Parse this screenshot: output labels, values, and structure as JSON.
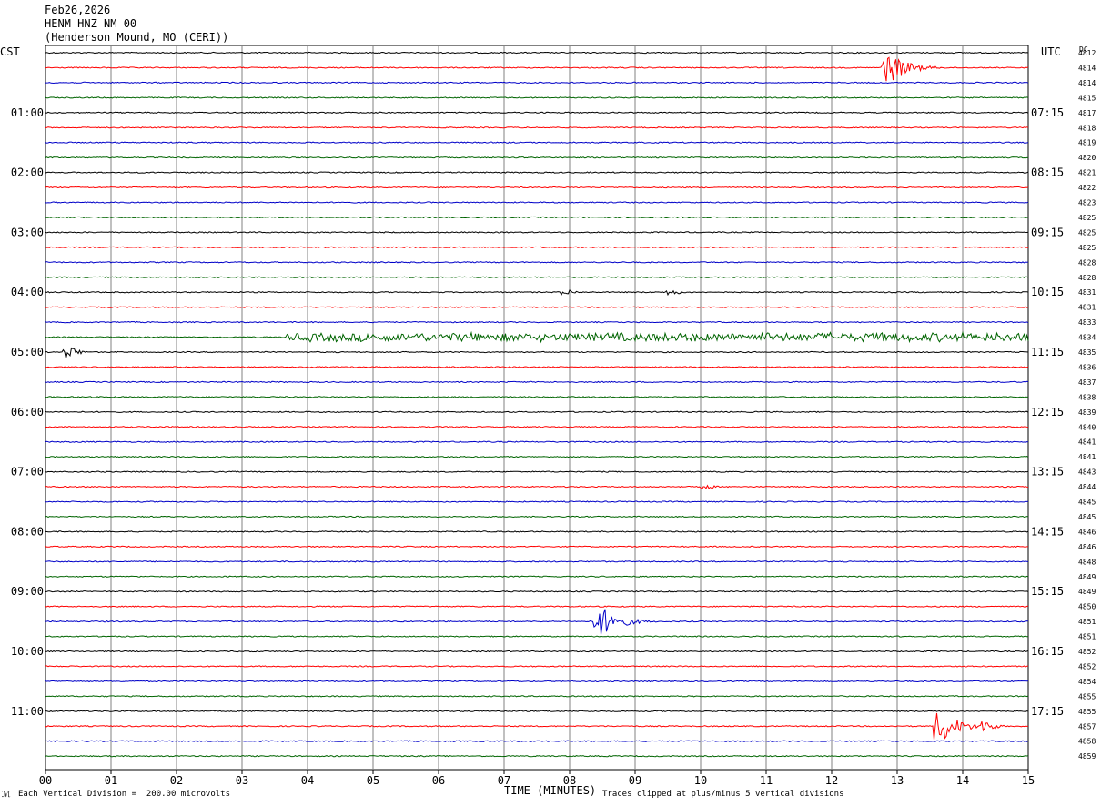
{
  "header": {
    "date": "Feb26,2026",
    "station": "HENM HNZ NM 00",
    "location": "(Henderson Mound, MO (CERI))"
  },
  "footer": {
    "scale_note": "Each Vertical Division =  200.00 microvolts",
    "clip_note": "Traces clipped at plus/minus 5 vertical divisions",
    "mark": "ℳ"
  },
  "chart_data": {
    "type": "line",
    "title": "",
    "xlabel": "TIME (MINUTES)",
    "x_ticks": [
      "00",
      "01",
      "02",
      "03",
      "04",
      "05",
      "06",
      "07",
      "08",
      "09",
      "10",
      "11",
      "12",
      "13",
      "14",
      "15"
    ],
    "xlim": [
      0,
      15
    ],
    "left_axis_label": "CST",
    "right_axis_label": "UTC",
    "dc_label": "DC",
    "trace_colors": [
      "#000000",
      "#ff0000",
      "#0000c8",
      "#006400"
    ],
    "left_time_labels": [
      "01:00",
      "02:00",
      "03:00",
      "04:00",
      "05:00",
      "06:00",
      "07:00",
      "08:00",
      "09:00",
      "10:00",
      "11:00"
    ],
    "right_time_labels": [
      "07:15",
      "08:15",
      "09:15",
      "10:15",
      "11:15",
      "12:15",
      "13:15",
      "14:15",
      "15:15",
      "16:15",
      "17:15"
    ],
    "dc_offsets": [
      "4812",
      "4814",
      "4814",
      "4815",
      "4817",
      "4818",
      "4819",
      "4820",
      "4821",
      "4822",
      "4823",
      "4825",
      "4825",
      "4825",
      "4828",
      "4828",
      "4831",
      "4831",
      "4833",
      "4834",
      "4835",
      "4836",
      "4837",
      "4838",
      "4839",
      "4840",
      "4841",
      "4841",
      "4843",
      "4844",
      "4845",
      "4845",
      "4846",
      "4846",
      "4848",
      "4849",
      "4849",
      "4850",
      "4851",
      "4851",
      "4852",
      "4852",
      "4854",
      "4855",
      "4855",
      "4857",
      "4858",
      "4859"
    ],
    "events": [
      {
        "trace": 1,
        "minute": 12.9,
        "amplitude": "large",
        "note": "red burst"
      },
      {
        "trace": 16,
        "minute": 8.0,
        "amplitude": "small"
      },
      {
        "trace": 16,
        "minute": 9.6,
        "amplitude": "small"
      },
      {
        "trace": 19,
        "minute": 9.5,
        "amplitude": "medium",
        "note": "green noisy segment"
      },
      {
        "trace": 20,
        "minute": 0.4,
        "amplitude": "medium"
      },
      {
        "trace": 29,
        "minute": 10.1,
        "amplitude": "small"
      },
      {
        "trace": 38,
        "minute": 8.5,
        "amplitude": "large",
        "note": "blue burst"
      },
      {
        "trace": 45,
        "minute": 13.7,
        "amplitude": "large",
        "note": "red burst"
      },
      {
        "trace": 45,
        "minute": 14.4,
        "amplitude": "medium"
      }
    ]
  }
}
